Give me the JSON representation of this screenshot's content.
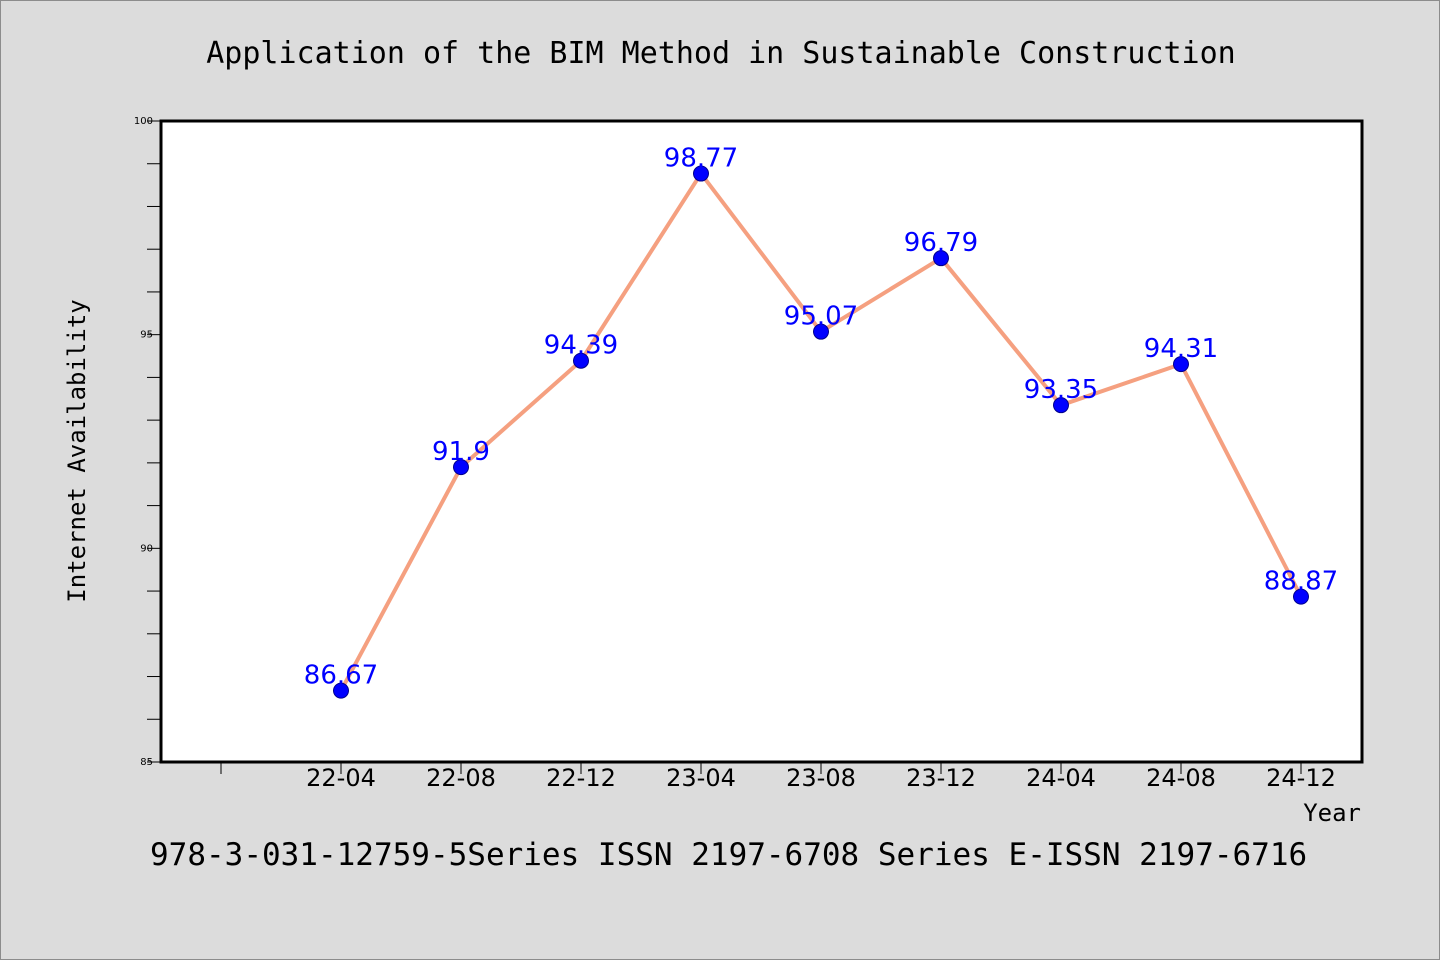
{
  "chart_data": {
    "type": "line",
    "title": "Application of the BIM Method in Sustainable Construction",
    "xlabel": "Year",
    "ylabel": "Internet Availability",
    "categories": [
      "22-04",
      "22-08",
      "22-12",
      "23-04",
      "23-08",
      "23-12",
      "24-04",
      "24-08",
      "24-12"
    ],
    "series": [
      {
        "values": [
          86.67,
          91.9,
          94.39,
          98.77,
          95.07,
          96.79,
          93.35,
          94.31,
          88.87
        ]
      }
    ],
    "data_labels": [
      "86.67",
      "91.9",
      "94.39",
      "98.77",
      "95.07",
      "96.79",
      "93.35",
      "94.31",
      "88.87"
    ],
    "ylim": [
      85,
      100
    ],
    "yticks": [
      85,
      90,
      95,
      100
    ],
    "ytick_labels": [
      "85",
      "90",
      "95",
      "100"
    ],
    "grid": false,
    "line_color": "#f5a080",
    "marker_color": "#0000ff",
    "label_color": "#0000ff",
    "background_color": "#dcdcdc",
    "plot_background": "#ffffff"
  },
  "footer": "978-3-031-12759-5Series ISSN 2197-6708 Series E-ISSN 2197-6716"
}
